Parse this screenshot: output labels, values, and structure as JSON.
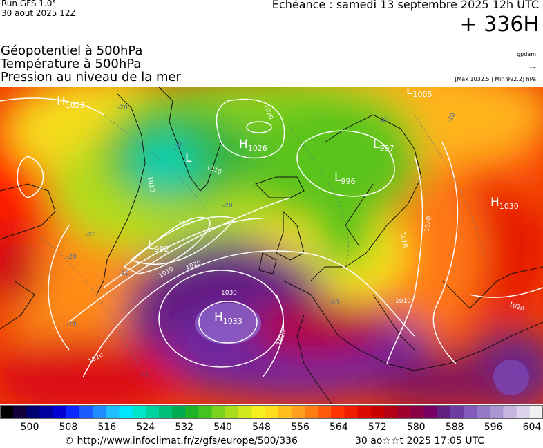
{
  "header": {
    "run_line1": "Run GFS 1.0°",
    "run_line2": "30 aout 2025 12Z",
    "echeance": "Echéance : samedi 13 septembre 2025 12h UTC",
    "hour": "+ 336H",
    "titles": [
      "Géopotentiel à 500hPa",
      "Température à 500hPa",
      "Pression au niveau de la mer"
    ],
    "units": [
      "gpdam",
      "°C",
      "[Max 1032.5 | Min 992.2] hPa"
    ]
  },
  "map": {
    "pressure_centers": [
      {
        "type": "H",
        "value": "1023"
      },
      {
        "type": "L",
        "value": "1005"
      },
      {
        "type": "H",
        "value": "1026"
      },
      {
        "type": "L",
        "value": "997"
      },
      {
        "type": "L",
        "value": "996"
      },
      {
        "type": "H",
        "value": "1030"
      },
      {
        "type": "L",
        "value": "992"
      },
      {
        "type": "H",
        "value": "1033"
      },
      {
        "type": "L",
        "value": ""
      }
    ],
    "isobar_labels": [
      "1020",
      "1010",
      "1010",
      "1000",
      "1010",
      "1020",
      "1030",
      "1020",
      "1020",
      "1010",
      "1010",
      "1020",
      "1020"
    ],
    "temperature_labels": [
      "-20",
      "-30",
      "-20",
      "-20",
      "-20",
      "-20",
      "-20",
      "-10",
      "-10",
      "-20",
      "-20"
    ]
  },
  "scale": {
    "ticks": [
      "500",
      "508",
      "516",
      "524",
      "532",
      "540",
      "548",
      "556",
      "564",
      "572",
      "580",
      "588",
      "596",
      "604"
    ],
    "colors": [
      "#000000",
      "#14003c",
      "#00006e",
      "#0000a0",
      "#0000d0",
      "#0a28ff",
      "#1a5aff",
      "#1e8cff",
      "#1ebeff",
      "#00e6ff",
      "#00e6c8",
      "#00d2a0",
      "#00be78",
      "#00aa50",
      "#1eb428",
      "#46c31e",
      "#78d21e",
      "#aadc1e",
      "#d2e61e",
      "#f5f01e",
      "#ffdc1e",
      "#ffbe1e",
      "#ffa01e",
      "#ff7d14",
      "#ff5a0a",
      "#ff3200",
      "#f01e00",
      "#dc0a00",
      "#c80000",
      "#b40014",
      "#a0002d",
      "#8c0046",
      "#780064",
      "#641e82",
      "#6e3ca0",
      "#825abe",
      "#9678c8",
      "#aa96d2",
      "#c8b4e1",
      "#dcd2eb",
      "#f0f0f0"
    ],
    "tick_values": [
      500,
      508,
      516,
      524,
      532,
      540,
      548,
      556,
      564,
      572,
      580,
      588,
      596,
      604
    ]
  },
  "footer": {
    "copyright": "© http://www.infoclimat.fr/z/gfs/europe/500/336",
    "timestamp": "30 ao☆☆t 2025 17:05 UTC"
  }
}
